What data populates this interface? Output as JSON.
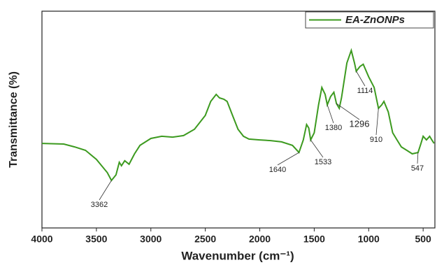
{
  "chart_data": {
    "type": "line",
    "x_label": "Wavenumber (cm⁻¹)",
    "y_label": "Transmittance (%)",
    "xlim": [
      4000,
      392
    ],
    "ylim": [
      0,
      100
    ],
    "xticks": [
      4000,
      3500,
      3000,
      2500,
      2000,
      1500,
      1000,
      500
    ],
    "legend": "upper right",
    "x": [
      4000,
      3800,
      3700,
      3600,
      3500,
      3400,
      3362,
      3320,
      3290,
      3270,
      3240,
      3200,
      3150,
      3100,
      3000,
      2900,
      2800,
      2700,
      2600,
      2500,
      2450,
      2400,
      2370,
      2330,
      2300,
      2250,
      2200,
      2150,
      2100,
      2000,
      1900,
      1800,
      1700,
      1640,
      1600,
      1570,
      1550,
      1533,
      1500,
      1460,
      1430,
      1400,
      1380,
      1350,
      1320,
      1296,
      1270,
      1250,
      1200,
      1160,
      1130,
      1114,
      1080,
      1050,
      1000,
      950,
      910,
      880,
      860,
      820,
      780,
      740,
      700,
      650,
      600,
      547,
      520,
      500,
      470,
      440,
      420,
      400
    ],
    "series": [
      {
        "name": "EA-ZnONPs",
        "color": "#3c9a1f",
        "values": [
          39,
          38.7,
          37.4,
          35.8,
          31.6,
          25.5,
          21.9,
          24.5,
          30.3,
          28.7,
          31,
          29.4,
          34.2,
          38.1,
          41.3,
          42.3,
          41.9,
          42.6,
          45.5,
          51.9,
          58.4,
          61.6,
          60,
          59.4,
          58.4,
          51.9,
          45.5,
          42.3,
          41,
          40.6,
          40.3,
          39.7,
          38.1,
          34.8,
          40.6,
          47.7,
          46.1,
          40.6,
          43.9,
          56.8,
          64.8,
          61.6,
          56.8,
          60.6,
          62.6,
          57.4,
          55.2,
          60,
          76.1,
          81.9,
          76.1,
          72.3,
          74.5,
          75.5,
          69.7,
          64.8,
          55.2,
          56.8,
          58.4,
          53.5,
          43.9,
          40.6,
          37.4,
          35.8,
          34.2,
          34.8,
          39,
          42.3,
          40.6,
          42.3,
          40.6,
          39
        ]
      }
    ],
    "annotations": [
      {
        "label": "3362",
        "x": 3362
      },
      {
        "label": "1640",
        "x": 1640
      },
      {
        "label": "1533",
        "x": 1533
      },
      {
        "label": "1380",
        "x": 1380
      },
      {
        "label": "1296",
        "x": 1296
      },
      {
        "label": "1114",
        "x": 1114
      },
      {
        "label": "910",
        "x": 910
      },
      {
        "label": "547",
        "x": 547
      }
    ]
  }
}
